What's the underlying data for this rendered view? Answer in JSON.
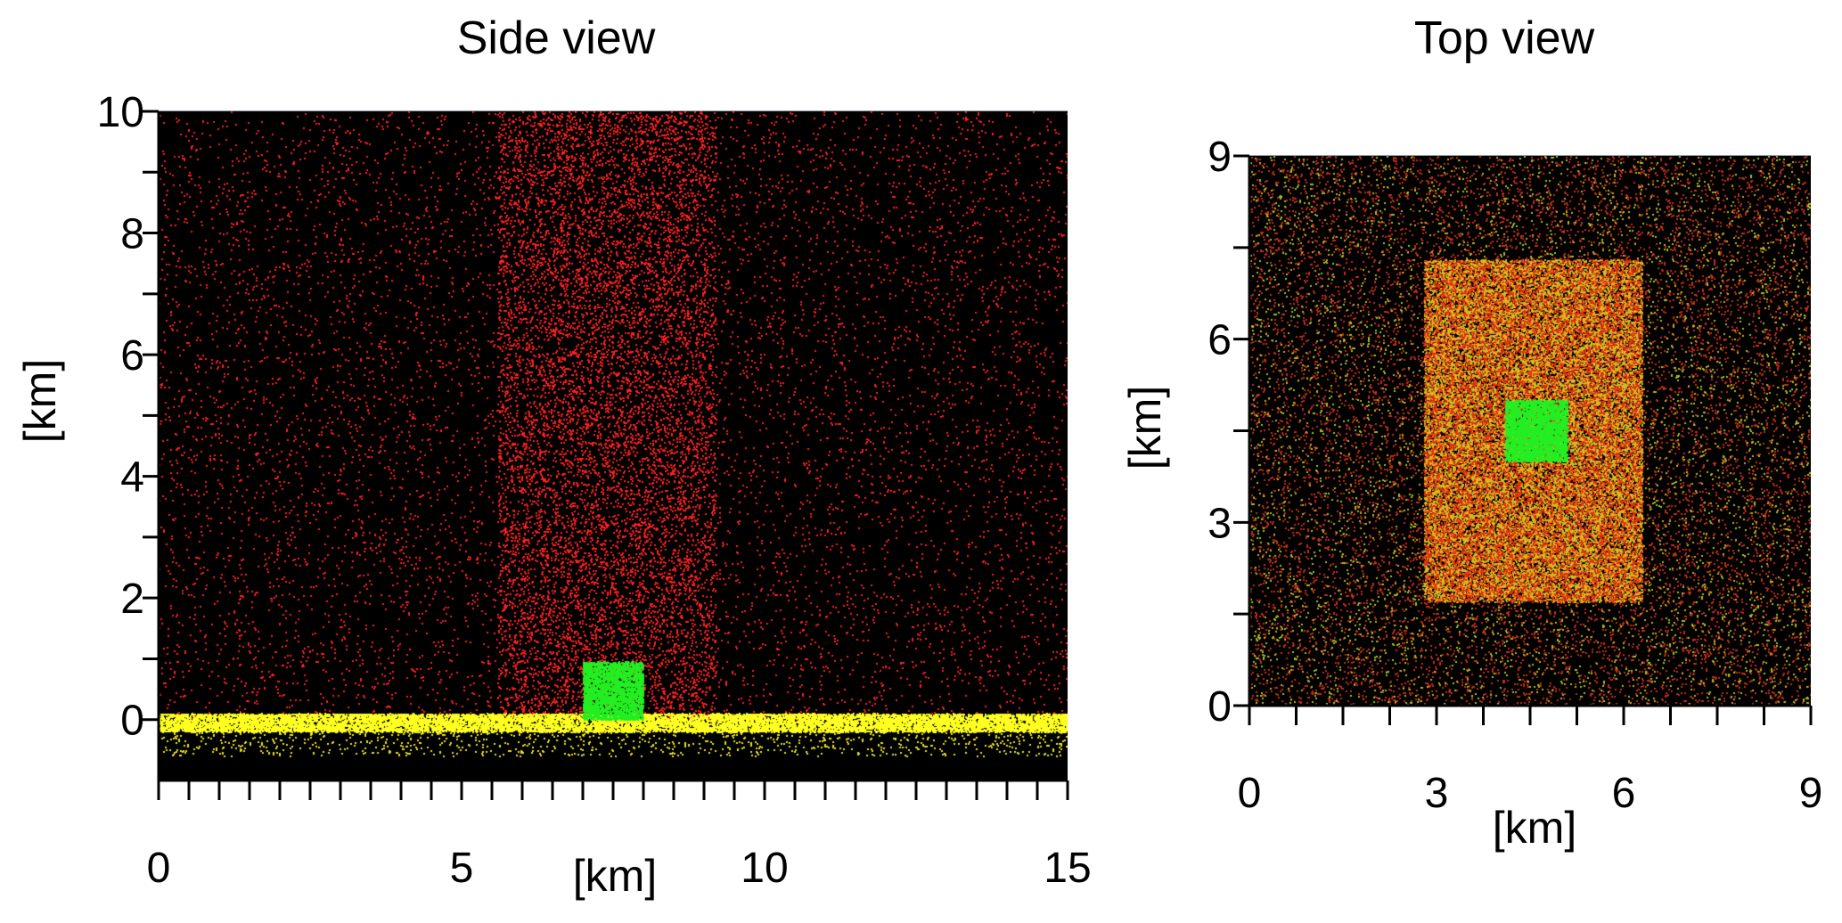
{
  "chart_data": [
    {
      "type": "scatter",
      "title": "Side view",
      "xlabel": "[km]",
      "ylabel": "[km]",
      "xlim": [
        0,
        15
      ],
      "ylim": [
        -1,
        10
      ],
      "xticks": [
        0,
        5,
        10,
        15
      ],
      "yticks": [
        0,
        2,
        4,
        6,
        8,
        10
      ],
      "grid": true,
      "background": "#000000",
      "regions": [
        {
          "x": [
            0,
            15
          ],
          "y": [
            0,
            10
          ],
          "color": "#ff2020",
          "density": 0.012
        },
        {
          "x": [
            5.6,
            9.2
          ],
          "y": [
            0,
            10
          ],
          "color": "#ff2020",
          "density": 0.05
        },
        {
          "x": [
            0,
            15
          ],
          "y": [
            -0.2,
            0.1
          ],
          "color": "#ffff20",
          "density": 0.6
        },
        {
          "x": [
            0,
            15
          ],
          "y": [
            -0.6,
            -0.2
          ],
          "color": "#e8e020",
          "density": 0.03
        },
        {
          "x": [
            7.0,
            8.0
          ],
          "y": [
            0,
            0.95
          ],
          "color": "#22ee22",
          "density": 0.7
        }
      ]
    },
    {
      "type": "scatter",
      "title": "Top view",
      "xlabel": "[km]",
      "ylabel": "[km]",
      "xlim": [
        0,
        9
      ],
      "ylim": [
        0,
        9
      ],
      "xticks": [
        0,
        3,
        6,
        9
      ],
      "yticks": [
        0,
        3,
        6,
        9
      ],
      "grid": true,
      "background": "#000000",
      "regions": [
        {
          "x": [
            0,
            9
          ],
          "y": [
            0,
            9
          ],
          "color": "#c03018",
          "density": 0.03
        },
        {
          "x": [
            0,
            9
          ],
          "y": [
            0,
            9
          ],
          "color": "#a8c020",
          "density": 0.012
        },
        {
          "x": [
            2.8,
            6.3
          ],
          "y": [
            1.7,
            7.3
          ],
          "color": "#d8b820",
          "density": 0.28
        },
        {
          "x": [
            2.8,
            6.3
          ],
          "y": [
            1.7,
            7.3
          ],
          "color": "#e03010",
          "density": 0.12
        },
        {
          "x": [
            4.1,
            5.1
          ],
          "y": [
            4.0,
            5.0
          ],
          "color": "#22ee22",
          "density": 0.75
        }
      ]
    }
  ]
}
